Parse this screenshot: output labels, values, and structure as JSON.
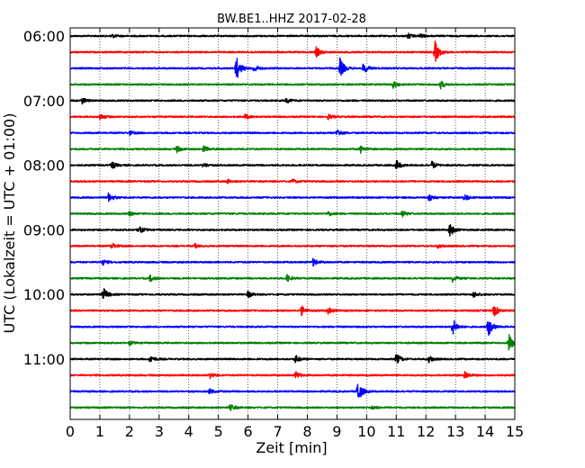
{
  "chart_data": {
    "type": "line",
    "title": "BW.BE1..HHZ 2017-02-28",
    "xlabel": "Zeit  [min]",
    "ylabel": "UTC (Lokalzeit = UTC + 01:00)",
    "xlim": [
      0,
      15
    ],
    "x_ticks": [
      "0",
      "1",
      "2",
      "3",
      "4",
      "5",
      "6",
      "7",
      "8",
      "9",
      "10",
      "11",
      "12",
      "13",
      "14",
      "15"
    ],
    "y_tick_labels": [
      "06:00",
      "07:00",
      "08:00",
      "09:00",
      "10:00",
      "11:00"
    ],
    "grid": "vertical dotted",
    "colors": [
      "#000000",
      "#ff0000",
      "#0000ff",
      "#008000"
    ],
    "traces": [
      {
        "start": "06:00",
        "color": "#000000",
        "events": [
          {
            "t": 1.4,
            "a": 0.15
          },
          {
            "t": 11.4,
            "a": 0.2
          },
          {
            "t": 11.8,
            "a": 0.15
          }
        ]
      },
      {
        "start": "06:15",
        "color": "#ff0000",
        "events": [
          {
            "t": 8.3,
            "a": 0.4
          },
          {
            "t": 12.3,
            "a": 0.9
          }
        ]
      },
      {
        "start": "06:30",
        "color": "#0000ff",
        "events": [
          {
            "t": 5.6,
            "a": 1.0
          },
          {
            "t": 6.2,
            "a": 0.3
          },
          {
            "t": 9.1,
            "a": 0.8
          },
          {
            "t": 9.9,
            "a": 0.45
          }
        ]
      },
      {
        "start": "06:45",
        "color": "#008000",
        "events": [
          {
            "t": 10.9,
            "a": 0.3
          },
          {
            "t": 12.5,
            "a": 0.3
          }
        ]
      },
      {
        "start": "07:00",
        "color": "#000000",
        "events": [
          {
            "t": 0.4,
            "a": 0.25
          },
          {
            "t": 7.3,
            "a": 0.2
          }
        ]
      },
      {
        "start": "07:15",
        "color": "#ff0000",
        "events": [
          {
            "t": 1.0,
            "a": 0.25
          },
          {
            "t": 5.9,
            "a": 0.2
          },
          {
            "t": 8.7,
            "a": 0.2
          }
        ]
      },
      {
        "start": "07:30",
        "color": "#0000ff",
        "events": [
          {
            "t": 2.0,
            "a": 0.15
          },
          {
            "t": 9.0,
            "a": 0.3
          }
        ]
      },
      {
        "start": "07:45",
        "color": "#008000",
        "events": [
          {
            "t": 3.6,
            "a": 0.25
          },
          {
            "t": 4.5,
            "a": 0.25
          },
          {
            "t": 9.8,
            "a": 0.3
          }
        ]
      },
      {
        "start": "08:00",
        "color": "#000000",
        "events": [
          {
            "t": 1.4,
            "a": 0.3
          },
          {
            "t": 4.5,
            "a": 0.2
          },
          {
            "t": 11.0,
            "a": 0.4
          },
          {
            "t": 12.2,
            "a": 0.3
          }
        ]
      },
      {
        "start": "08:15",
        "color": "#ff0000",
        "events": [
          {
            "t": 5.3,
            "a": 0.15
          },
          {
            "t": 7.5,
            "a": 0.15
          }
        ]
      },
      {
        "start": "08:30",
        "color": "#0000ff",
        "events": [
          {
            "t": 1.3,
            "a": 0.4
          },
          {
            "t": 12.1,
            "a": 0.3
          },
          {
            "t": 13.3,
            "a": 0.3
          }
        ]
      },
      {
        "start": "08:45",
        "color": "#008000",
        "events": [
          {
            "t": 2.0,
            "a": 0.15
          },
          {
            "t": 8.7,
            "a": 0.2
          },
          {
            "t": 11.2,
            "a": 0.25
          }
        ]
      },
      {
        "start": "09:00",
        "color": "#000000",
        "events": [
          {
            "t": 2.3,
            "a": 0.35
          },
          {
            "t": 12.8,
            "a": 0.55
          }
        ]
      },
      {
        "start": "09:15",
        "color": "#ff0000",
        "events": [
          {
            "t": 1.4,
            "a": 0.25
          },
          {
            "t": 4.2,
            "a": 0.15
          },
          {
            "t": 12.4,
            "a": 0.15
          }
        ]
      },
      {
        "start": "09:30",
        "color": "#0000ff",
        "events": [
          {
            "t": 1.1,
            "a": 0.2
          },
          {
            "t": 8.2,
            "a": 0.3
          }
        ]
      },
      {
        "start": "09:45",
        "color": "#008000",
        "events": [
          {
            "t": 2.7,
            "a": 0.25
          },
          {
            "t": 7.3,
            "a": 0.3
          },
          {
            "t": 12.9,
            "a": 0.25
          }
        ]
      },
      {
        "start": "10:00",
        "color": "#000000",
        "events": [
          {
            "t": 1.1,
            "a": 0.6
          },
          {
            "t": 6.0,
            "a": 0.25
          },
          {
            "t": 13.6,
            "a": 0.25
          }
        ]
      },
      {
        "start": "10:15",
        "color": "#ff0000",
        "events": [
          {
            "t": 7.8,
            "a": 0.4
          },
          {
            "t": 8.7,
            "a": 0.25
          },
          {
            "t": 14.3,
            "a": 0.45
          }
        ]
      },
      {
        "start": "10:30",
        "color": "#0000ff",
        "events": [
          {
            "t": 12.9,
            "a": 0.7
          },
          {
            "t": 14.1,
            "a": 0.8
          }
        ]
      },
      {
        "start": "10:45",
        "color": "#008000",
        "events": [
          {
            "t": 2.0,
            "a": 0.15
          },
          {
            "t": 14.8,
            "a": 0.7
          }
        ]
      },
      {
        "start": "11:00",
        "color": "#000000",
        "events": [
          {
            "t": 2.7,
            "a": 0.3
          },
          {
            "t": 7.6,
            "a": 0.3
          },
          {
            "t": 11.0,
            "a": 0.45
          },
          {
            "t": 12.1,
            "a": 0.25
          }
        ]
      },
      {
        "start": "11:15",
        "color": "#ff0000",
        "events": [
          {
            "t": 4.7,
            "a": 0.25
          },
          {
            "t": 7.6,
            "a": 0.3
          },
          {
            "t": 13.3,
            "a": 0.35
          }
        ]
      },
      {
        "start": "11:30",
        "color": "#0000ff",
        "events": [
          {
            "t": 4.7,
            "a": 0.2
          },
          {
            "t": 9.7,
            "a": 0.9
          }
        ]
      },
      {
        "start": "11:45",
        "color": "#008000",
        "events": [
          {
            "t": 5.4,
            "a": 0.25
          },
          {
            "t": 10.2,
            "a": 0.15
          }
        ]
      }
    ]
  }
}
